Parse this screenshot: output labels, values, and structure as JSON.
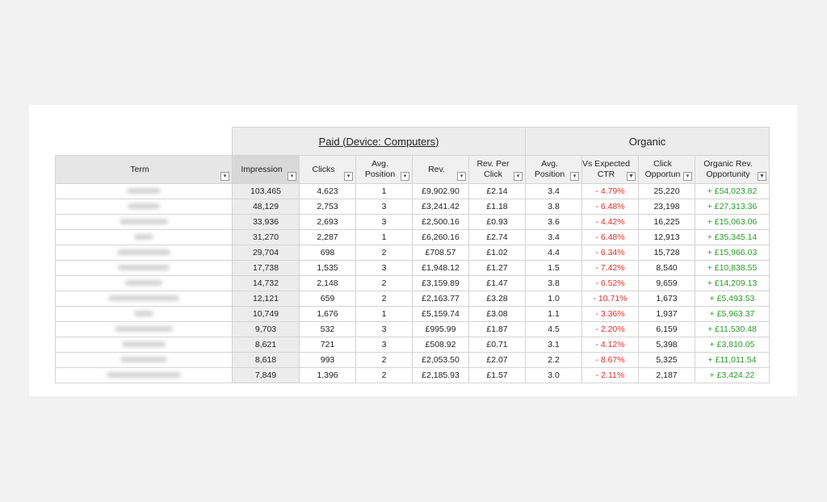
{
  "group_headers": {
    "paid": "Paid (Device: Computers)",
    "organic": "Organic"
  },
  "columns": [
    {
      "key": "term",
      "label": "Term",
      "filter_icon": "dropdown-arrow-icon"
    },
    {
      "key": "impressions",
      "label": "Impression",
      "filter_icon": "dropdown-arrow-icon"
    },
    {
      "key": "clicks",
      "label": "Clicks",
      "filter_icon": "dropdown-arrow-icon"
    },
    {
      "key": "avg_position",
      "label": "Avg.\nPosition",
      "filter_icon": "dropdown-arrow-icon"
    },
    {
      "key": "rev",
      "label": "Rev.",
      "filter_icon": "dropdown-arrow-icon"
    },
    {
      "key": "rev_per_click",
      "label": "Rev. Per\nClick",
      "filter_icon": "dropdown-arrow-icon"
    },
    {
      "key": "org_avg_position",
      "label": "Avg.\nPosition",
      "filter_icon": "dropdown-arrow-icon"
    },
    {
      "key": "vs_expected_ctr",
      "label": "Vs Expected\nCTR",
      "filter_icon": "filter-funnel-icon"
    },
    {
      "key": "click_opportunity",
      "label": "Click\nOpportun",
      "filter_icon": "dropdown-arrow-icon"
    },
    {
      "key": "organic_rev_opportunity",
      "label": "Organic Rev.\nOpportunity",
      "filter_icon": "filter-funnel-icon"
    }
  ],
  "rows": [
    {
      "term_blur_width": 42,
      "impressions": "103,465",
      "clicks": "4,623",
      "avg_position": "1",
      "rev": "£9,902.90",
      "rev_per_click": "£2.14",
      "org_avg_position": "3.4",
      "vs_expected_ctr": "- 4.79%",
      "click_opportunity": "25,220",
      "organic_rev_opportunity": "+ £54,023.82"
    },
    {
      "term_blur_width": 40,
      "impressions": "48,129",
      "clicks": "2,753",
      "avg_position": "3",
      "rev": "£3,241.42",
      "rev_per_click": "£1.18",
      "org_avg_position": "3.8",
      "vs_expected_ctr": "- 6.48%",
      "click_opportunity": "23,198",
      "organic_rev_opportunity": "+ £27,313.36"
    },
    {
      "term_blur_width": 60,
      "impressions": "33,936",
      "clicks": "2,693",
      "avg_position": "3",
      "rev": "£2,500.16",
      "rev_per_click": "£0.93",
      "org_avg_position": "3.6",
      "vs_expected_ctr": "- 4.42%",
      "click_opportunity": "16,225",
      "organic_rev_opportunity": "+ £15,063.06"
    },
    {
      "term_blur_width": 24,
      "impressions": "31,270",
      "clicks": "2,287",
      "avg_position": "1",
      "rev": "£6,260.16",
      "rev_per_click": "£2.74",
      "org_avg_position": "3.4",
      "vs_expected_ctr": "- 6.48%",
      "click_opportunity": "12,913",
      "organic_rev_opportunity": "+ £35,345.14"
    },
    {
      "term_blur_width": 66,
      "impressions": "29,704",
      "clicks": "698",
      "avg_position": "2",
      "rev": "£708.57",
      "rev_per_click": "£1.02",
      "org_avg_position": "4.4",
      "vs_expected_ctr": "- 6.34%",
      "click_opportunity": "15,728",
      "organic_rev_opportunity": "+ £15,966.03"
    },
    {
      "term_blur_width": 64,
      "impressions": "17,738",
      "clicks": "1,535",
      "avg_position": "3",
      "rev": "£1,948.12",
      "rev_per_click": "£1.27",
      "org_avg_position": "1.5",
      "vs_expected_ctr": "- 7.42%",
      "click_opportunity": "8,540",
      "organic_rev_opportunity": "+ £10,838.55"
    },
    {
      "term_blur_width": 46,
      "impressions": "14,732",
      "clicks": "2,148",
      "avg_position": "2",
      "rev": "£3,159.89",
      "rev_per_click": "£1.47",
      "org_avg_position": "3.8",
      "vs_expected_ctr": "- 6.52%",
      "click_opportunity": "9,659",
      "organic_rev_opportunity": "+ £14,209.13"
    },
    {
      "term_blur_width": 88,
      "impressions": "12,121",
      "clicks": "659",
      "avg_position": "2",
      "rev": "£2,163.77",
      "rev_per_click": "£3.28",
      "org_avg_position": "1.0",
      "vs_expected_ctr": "- 10.71%",
      "click_opportunity": "1,673",
      "organic_rev_opportunity": "+ £5,493.53"
    },
    {
      "term_blur_width": 24,
      "impressions": "10,749",
      "clicks": "1,676",
      "avg_position": "1",
      "rev": "£5,159.74",
      "rev_per_click": "£3.08",
      "org_avg_position": "1.1",
      "vs_expected_ctr": "- 3.36%",
      "click_opportunity": "1,937",
      "organic_rev_opportunity": "+ £5,963.37"
    },
    {
      "term_blur_width": 72,
      "impressions": "9,703",
      "clicks": "532",
      "avg_position": "3",
      "rev": "£995.99",
      "rev_per_click": "£1.87",
      "org_avg_position": "4.5",
      "vs_expected_ctr": "- 2.20%",
      "click_opportunity": "6,159",
      "organic_rev_opportunity": "+ £11,530.48"
    },
    {
      "term_blur_width": 54,
      "impressions": "8,621",
      "clicks": "721",
      "avg_position": "3",
      "rev": "£508.92",
      "rev_per_click": "£0.71",
      "org_avg_position": "3.1",
      "vs_expected_ctr": "- 4.12%",
      "click_opportunity": "5,398",
      "organic_rev_opportunity": "+ £3,810.05"
    },
    {
      "term_blur_width": 58,
      "impressions": "8,618",
      "clicks": "993",
      "avg_position": "2",
      "rev": "£2,053.50",
      "rev_per_click": "£2.07",
      "org_avg_position": "2.2",
      "vs_expected_ctr": "- 8.67%",
      "click_opportunity": "5,325",
      "organic_rev_opportunity": "+ £11,011.54"
    },
    {
      "term_blur_width": 92,
      "impressions": "7,849",
      "clicks": "1,396",
      "avg_position": "2",
      "rev": "£2,185.93",
      "rev_per_click": "£1.57",
      "org_avg_position": "3.0",
      "vs_expected_ctr": "- 2.11%",
      "click_opportunity": "2,187",
      "organic_rev_opportunity": "+ £3,424.22"
    }
  ],
  "colors": {
    "negative": "#e0302a",
    "positive": "#2a9a2a",
    "header_bg": "#ececec",
    "page_bg": "#f2f2f2"
  }
}
